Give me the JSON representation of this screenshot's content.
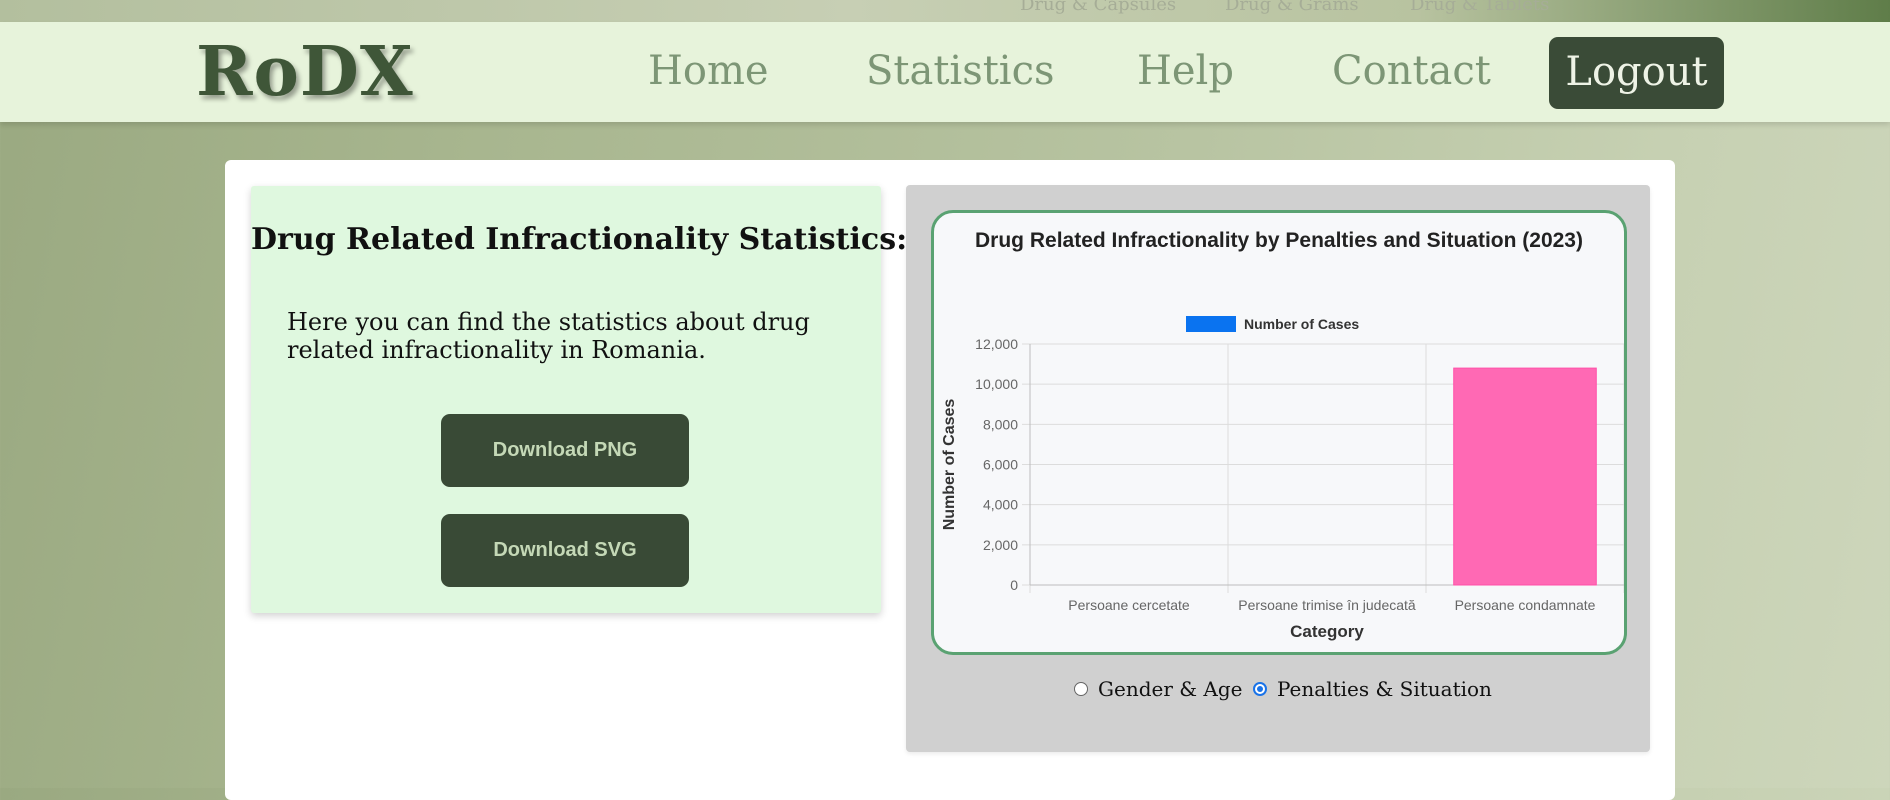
{
  "topstrip": {
    "ghost_items": [
      "Drug & Capsules",
      "Drug & Grams",
      "Drug & Tablets"
    ]
  },
  "nav": {
    "logo": "RoDX",
    "links": [
      "Home",
      "Statistics",
      "Help",
      "Contact"
    ],
    "logout": "Logout"
  },
  "info": {
    "title": "Drug Related Infractionality Statistics:",
    "description": "Here you can find the statistics about drug related infractionality in Romania.",
    "download_png": "Download PNG",
    "download_svg": "Download SVG"
  },
  "chart_data": {
    "type": "bar",
    "title": "Drug Related Infractionality by Penalties and Situation (2023)",
    "xlabel": "Category",
    "ylabel": "Number of Cases",
    "categories": [
      "Persoane cercetate",
      "Persoane trimise în judecată",
      "Persoane condamnate"
    ],
    "series": [
      {
        "name": "Number of Cases",
        "values": [
          0,
          0,
          10800
        ]
      }
    ],
    "ylim": [
      0,
      12000
    ],
    "yticks": [
      0,
      2000,
      4000,
      6000,
      8000,
      10000,
      12000
    ],
    "ytick_labels": [
      "0",
      "2,000",
      "4,000",
      "6,000",
      "8,000",
      "10,000",
      "12,000"
    ],
    "legend_position": "top",
    "legend_color": "#0a73f0",
    "bar_color": "#ff69b4",
    "grid": true
  },
  "options": {
    "gender_age": "Gender & Age",
    "penalties_situation": "Penalties & Situation",
    "selected": "penalties_situation"
  }
}
